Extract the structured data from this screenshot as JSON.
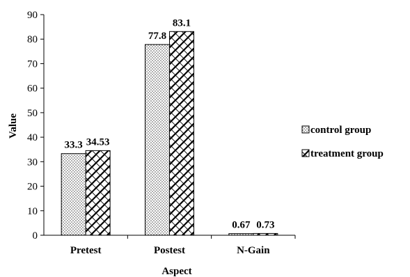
{
  "chart_data": {
    "type": "bar",
    "categories": [
      "Pretest",
      "Postest",
      "N-Gain"
    ],
    "series": [
      {
        "name": "control group",
        "values": [
          33.3,
          77.8,
          0.67
        ],
        "labels": [
          "33.3",
          "77.8",
          "0.67"
        ],
        "pattern": "dots"
      },
      {
        "name": "treatment group",
        "values": [
          34.53,
          83.1,
          0.73
        ],
        "labels": [
          "34.53",
          "83.1",
          "0.73"
        ],
        "pattern": "lattice"
      }
    ],
    "xlabel": "Aspect",
    "ylabel": "Value",
    "ylim": [
      0,
      90
    ],
    "yticks": [
      0,
      10,
      20,
      30,
      40,
      50,
      60,
      70,
      80,
      90
    ],
    "grid": false,
    "legend": "right"
  }
}
